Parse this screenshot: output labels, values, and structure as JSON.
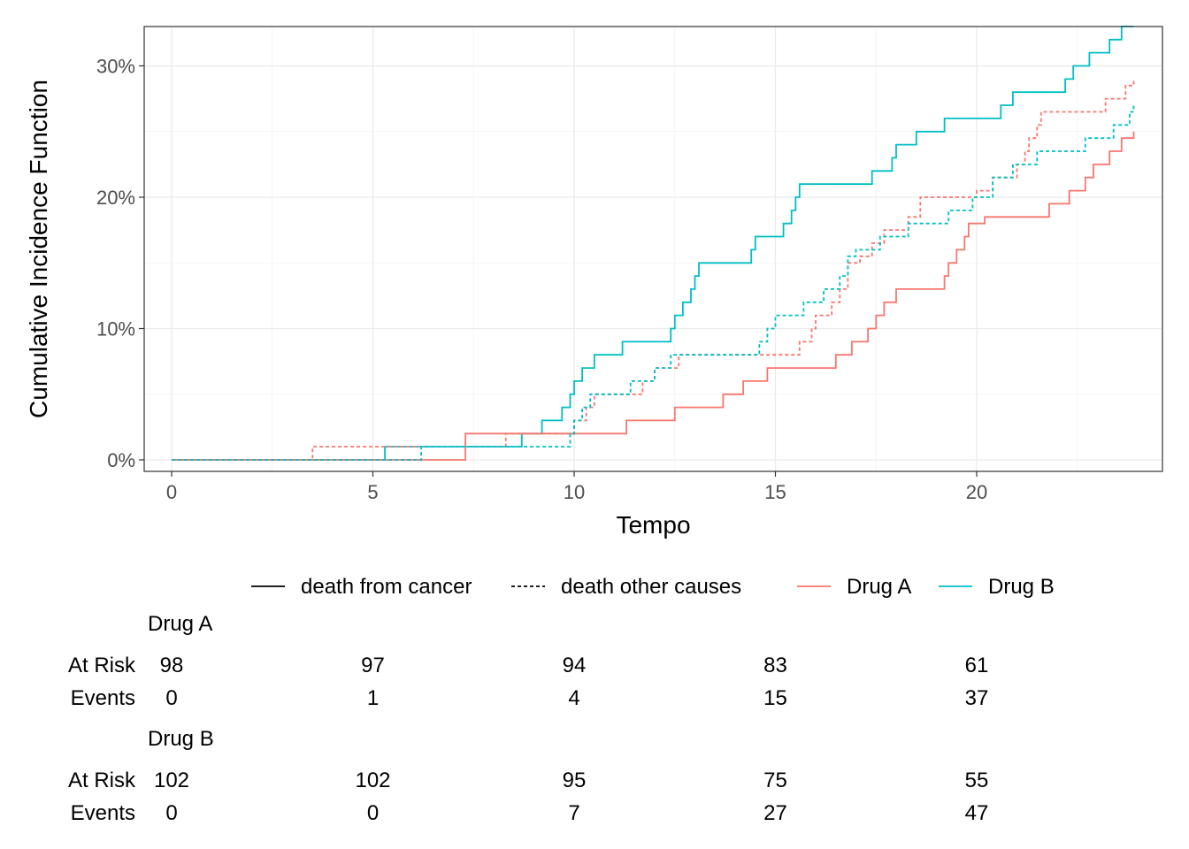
{
  "chart_data": {
    "type": "line",
    "step": true,
    "xlabel": "Tempo",
    "ylabel": "Cumulative Incidence Function",
    "xlim": [
      0,
      24
    ],
    "ylim": [
      0,
      0.32
    ],
    "x_ticks": [
      0,
      5,
      10,
      15,
      20
    ],
    "y_ticks": [
      0,
      0.1,
      0.2,
      0.3
    ],
    "y_tick_labels": [
      "0%",
      "10%",
      "20%",
      "30%"
    ],
    "grid": true,
    "colors": {
      "Drug A": "#F8766D",
      "Drug B": "#00BFC4"
    },
    "legend": {
      "placement": "bottom",
      "linetype_items": [
        {
          "label": "death from cancer",
          "dash": "solid"
        },
        {
          "label": "death other causes",
          "dash": "dashed"
        }
      ],
      "color_items": [
        {
          "label": "Drug A",
          "color": "#F8766D"
        },
        {
          "label": "Drug B",
          "color": "#00BFC4"
        }
      ]
    },
    "series": [
      {
        "group": "Drug B",
        "cause": "death from cancer",
        "color": "#00BFC4",
        "dash": "solid",
        "points": [
          [
            0,
            0
          ],
          [
            5.3,
            0.01
          ],
          [
            8.7,
            0.02
          ],
          [
            9.2,
            0.03
          ],
          [
            9.7,
            0.04
          ],
          [
            9.9,
            0.05
          ],
          [
            10.0,
            0.06
          ],
          [
            10.2,
            0.07
          ],
          [
            10.5,
            0.08
          ],
          [
            11.2,
            0.09
          ],
          [
            12.4,
            0.1
          ],
          [
            12.5,
            0.11
          ],
          [
            12.7,
            0.12
          ],
          [
            12.9,
            0.13
          ],
          [
            13.0,
            0.14
          ],
          [
            13.1,
            0.15
          ],
          [
            14.4,
            0.16
          ],
          [
            14.5,
            0.17
          ],
          [
            15.2,
            0.18
          ],
          [
            15.4,
            0.19
          ],
          [
            15.5,
            0.2
          ],
          [
            15.6,
            0.21
          ],
          [
            17.4,
            0.22
          ],
          [
            17.9,
            0.23
          ],
          [
            18.0,
            0.24
          ],
          [
            18.5,
            0.25
          ],
          [
            19.2,
            0.26
          ],
          [
            20.6,
            0.27
          ],
          [
            20.9,
            0.28
          ],
          [
            22.2,
            0.29
          ],
          [
            22.4,
            0.3
          ],
          [
            22.8,
            0.31
          ],
          [
            23.3,
            0.32
          ],
          [
            23.6,
            0.33
          ],
          [
            23.9,
            0.33
          ]
        ]
      },
      {
        "group": "Drug A",
        "cause": "death from cancer",
        "color": "#F8766D",
        "dash": "solid",
        "points": [
          [
            0,
            0
          ],
          [
            7.3,
            0.02
          ],
          [
            11.3,
            0.03
          ],
          [
            12.5,
            0.04
          ],
          [
            13.7,
            0.05
          ],
          [
            14.2,
            0.06
          ],
          [
            14.8,
            0.07
          ],
          [
            16.5,
            0.08
          ],
          [
            16.9,
            0.09
          ],
          [
            17.3,
            0.1
          ],
          [
            17.5,
            0.11
          ],
          [
            17.7,
            0.12
          ],
          [
            18.0,
            0.13
          ],
          [
            19.2,
            0.14
          ],
          [
            19.3,
            0.15
          ],
          [
            19.5,
            0.16
          ],
          [
            19.7,
            0.17
          ],
          [
            19.8,
            0.18
          ],
          [
            20.2,
            0.185
          ],
          [
            21.8,
            0.195
          ],
          [
            22.3,
            0.205
          ],
          [
            22.7,
            0.215
          ],
          [
            22.9,
            0.225
          ],
          [
            23.3,
            0.235
          ],
          [
            23.6,
            0.245
          ],
          [
            23.9,
            0.25
          ]
        ]
      },
      {
        "group": "Drug A",
        "cause": "death other causes",
        "color": "#F8766D",
        "dash": "dashed",
        "points": [
          [
            0,
            0
          ],
          [
            3.5,
            0.01
          ],
          [
            8.3,
            0.02
          ],
          [
            10.0,
            0.03
          ],
          [
            10.3,
            0.04
          ],
          [
            10.5,
            0.05
          ],
          [
            11.7,
            0.06
          ],
          [
            12.0,
            0.07
          ],
          [
            12.6,
            0.08
          ],
          [
            15.6,
            0.09
          ],
          [
            15.9,
            0.1
          ],
          [
            16.0,
            0.11
          ],
          [
            16.4,
            0.12
          ],
          [
            16.6,
            0.13
          ],
          [
            16.8,
            0.15
          ],
          [
            17.1,
            0.155
          ],
          [
            17.4,
            0.165
          ],
          [
            17.7,
            0.175
          ],
          [
            18.3,
            0.185
          ],
          [
            18.6,
            0.2
          ],
          [
            20.0,
            0.205
          ],
          [
            20.4,
            0.215
          ],
          [
            21.0,
            0.225
          ],
          [
            21.2,
            0.235
          ],
          [
            21.3,
            0.245
          ],
          [
            21.5,
            0.255
          ],
          [
            21.6,
            0.265
          ],
          [
            23.2,
            0.275
          ],
          [
            23.7,
            0.285
          ],
          [
            23.9,
            0.29
          ]
        ]
      },
      {
        "group": "Drug B",
        "cause": "death other causes",
        "color": "#00BFC4",
        "dash": "dashed",
        "points": [
          [
            0,
            0
          ],
          [
            6.2,
            0.01
          ],
          [
            9.9,
            0.02
          ],
          [
            10.0,
            0.03
          ],
          [
            10.2,
            0.04
          ],
          [
            10.4,
            0.05
          ],
          [
            11.4,
            0.06
          ],
          [
            12.0,
            0.07
          ],
          [
            12.4,
            0.08
          ],
          [
            14.6,
            0.09
          ],
          [
            14.8,
            0.1
          ],
          [
            15.0,
            0.11
          ],
          [
            15.7,
            0.12
          ],
          [
            16.2,
            0.13
          ],
          [
            16.6,
            0.14
          ],
          [
            16.8,
            0.155
          ],
          [
            17.0,
            0.16
          ],
          [
            17.6,
            0.17
          ],
          [
            18.3,
            0.18
          ],
          [
            19.3,
            0.19
          ],
          [
            19.9,
            0.2
          ],
          [
            20.4,
            0.215
          ],
          [
            20.9,
            0.225
          ],
          [
            21.5,
            0.235
          ],
          [
            22.7,
            0.245
          ],
          [
            23.4,
            0.255
          ],
          [
            23.8,
            0.265
          ],
          [
            23.9,
            0.27
          ]
        ]
      }
    ],
    "risk_table": {
      "times": [
        0,
        5,
        10,
        15,
        20
      ],
      "groups": [
        {
          "name": "Drug A",
          "rows": [
            {
              "label": "At Risk",
              "values": [
                "98",
                "97",
                "94",
                "83",
                "61"
              ]
            },
            {
              "label": "Events",
              "values": [
                "0",
                "1",
                "4",
                "15",
                "37"
              ]
            }
          ]
        },
        {
          "name": "Drug B",
          "rows": [
            {
              "label": "At Risk",
              "values": [
                "102",
                "102",
                "95",
                "75",
                "55"
              ]
            },
            {
              "label": "Events",
              "values": [
                "0",
                "0",
                "7",
                "27",
                "47"
              ]
            }
          ]
        }
      ]
    }
  }
}
